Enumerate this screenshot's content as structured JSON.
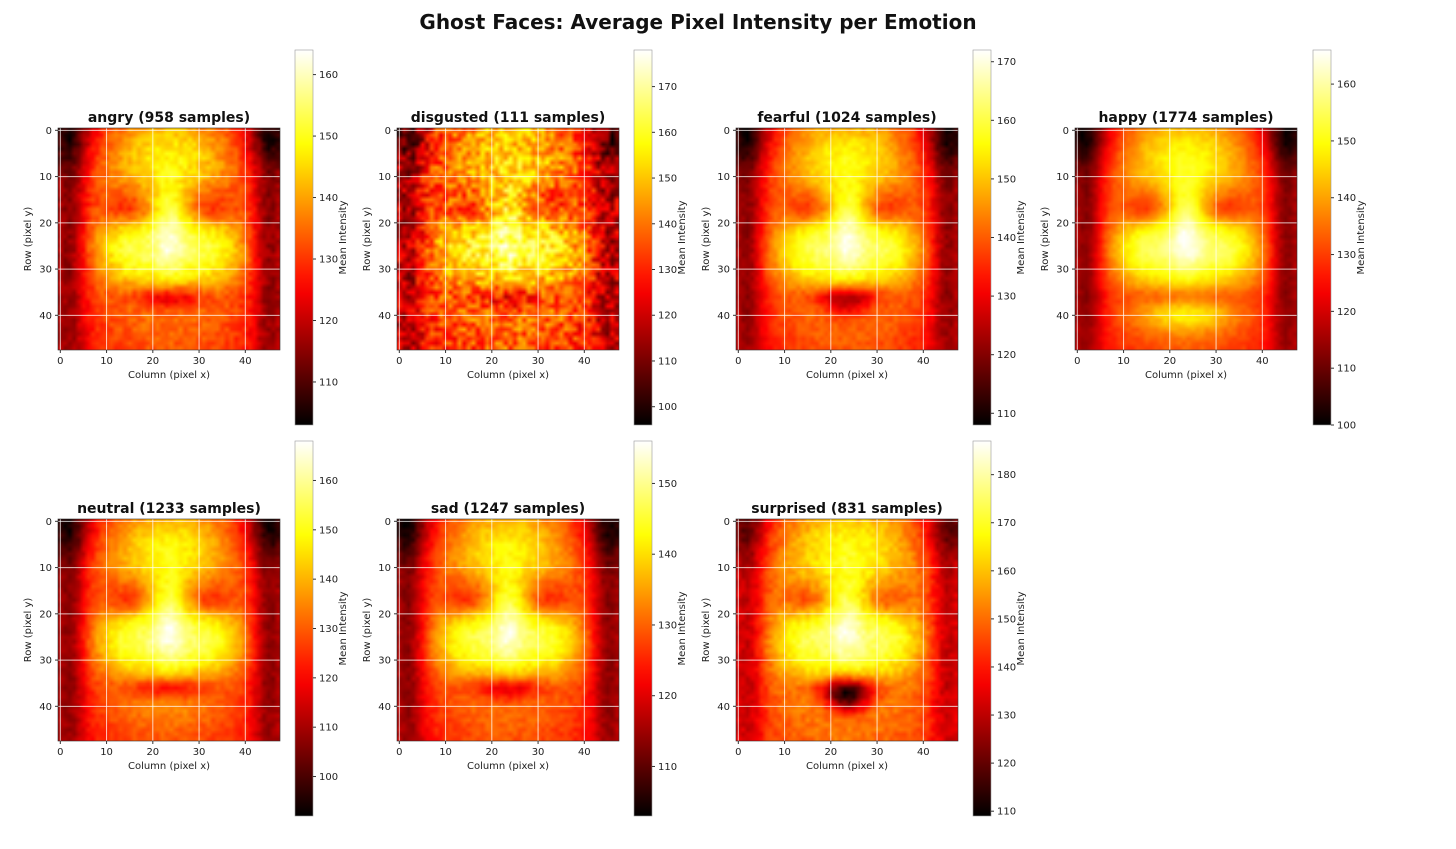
{
  "figure_title": "Ghost Faces: Average Pixel Intensity per Emotion",
  "chart_data": [
    {
      "type": "heatmap",
      "title": "angry (958 samples)",
      "xlabel": "Column (pixel x)",
      "ylabel": "Row (pixel y)",
      "x_ticks": [
        0,
        10,
        20,
        30,
        40
      ],
      "y_ticks": [
        0,
        10,
        20,
        30,
        40
      ],
      "grid": true,
      "colorbar": {
        "label": "Mean Intensity",
        "range": [
          103,
          164
        ],
        "ticks": [
          110,
          120,
          130,
          140,
          150,
          160
        ]
      },
      "colormap": "hot",
      "face_params": {
        "mouth_open": 0.1,
        "smile": 0.0,
        "brow": 0.5,
        "noise": 0.04
      }
    },
    {
      "type": "heatmap",
      "title": "disgusted (111 samples)",
      "xlabel": "Column (pixel x)",
      "ylabel": "Row (pixel y)",
      "x_ticks": [
        0,
        10,
        20,
        30,
        40
      ],
      "y_ticks": [
        0,
        10,
        20,
        30,
        40
      ],
      "grid": true,
      "colorbar": {
        "label": "Mean Intensity",
        "range": [
          96,
          178
        ],
        "ticks": [
          100,
          110,
          120,
          130,
          140,
          150,
          160,
          170
        ]
      },
      "colormap": "hot",
      "face_params": {
        "mouth_open": 0.15,
        "smile": 0.1,
        "brow": 0.7,
        "noise": 0.14
      }
    },
    {
      "type": "heatmap",
      "title": "fearful (1024 samples)",
      "xlabel": "Column (pixel x)",
      "ylabel": "Row (pixel y)",
      "x_ticks": [
        0,
        10,
        20,
        30,
        40
      ],
      "y_ticks": [
        0,
        10,
        20,
        30,
        40
      ],
      "grid": true,
      "colorbar": {
        "label": "Mean Intensity",
        "range": [
          108,
          172
        ],
        "ticks": [
          110,
          120,
          130,
          140,
          150,
          160,
          170
        ]
      },
      "colormap": "hot",
      "face_params": {
        "mouth_open": 0.35,
        "smile": 0.0,
        "brow": 0.4,
        "noise": 0.03
      }
    },
    {
      "type": "heatmap",
      "title": "happy (1774 samples)",
      "xlabel": "Column (pixel x)",
      "ylabel": "Row (pixel y)",
      "x_ticks": [
        0,
        10,
        20,
        30,
        40
      ],
      "y_ticks": [
        0,
        10,
        20,
        30,
        40
      ],
      "grid": true,
      "colorbar": {
        "label": "Mean Intensity",
        "range": [
          100,
          166
        ],
        "ticks": [
          100,
          110,
          120,
          130,
          140,
          150,
          160
        ]
      },
      "colormap": "hot",
      "face_params": {
        "mouth_open": 0.0,
        "smile": 1.0,
        "brow": 0.3,
        "noise": 0.02
      }
    },
    {
      "type": "heatmap",
      "title": "neutral (1233 samples)",
      "xlabel": "Column (pixel x)",
      "ylabel": "Row (pixel y)",
      "x_ticks": [
        0,
        10,
        20,
        30,
        40
      ],
      "y_ticks": [
        0,
        10,
        20,
        30,
        40
      ],
      "grid": true,
      "colorbar": {
        "label": "Mean Intensity",
        "range": [
          92,
          168
        ],
        "ticks": [
          100,
          110,
          120,
          130,
          140,
          150,
          160
        ]
      },
      "colormap": "hot",
      "face_params": {
        "mouth_open": 0.05,
        "smile": 0.2,
        "brow": 0.4,
        "noise": 0.03
      }
    },
    {
      "type": "heatmap",
      "title": "sad (1247 samples)",
      "xlabel": "Column (pixel x)",
      "ylabel": "Row (pixel y)",
      "x_ticks": [
        0,
        10,
        20,
        30,
        40
      ],
      "y_ticks": [
        0,
        10,
        20,
        30,
        40
      ],
      "grid": true,
      "colorbar": {
        "label": "Mean Intensity",
        "range": [
          103,
          156
        ],
        "ticks": [
          110,
          120,
          130,
          140,
          150
        ]
      },
      "colormap": "hot",
      "face_params": {
        "mouth_open": 0.1,
        "smile": 0.0,
        "brow": 0.5,
        "noise": 0.03
      }
    },
    {
      "type": "heatmap",
      "title": "surprised (831 samples)",
      "xlabel": "Column (pixel x)",
      "ylabel": "Row (pixel y)",
      "x_ticks": [
        0,
        10,
        20,
        30,
        40
      ],
      "y_ticks": [
        0,
        10,
        20,
        30,
        40
      ],
      "grid": true,
      "colorbar": {
        "label": "Mean Intensity",
        "range": [
          109,
          187
        ],
        "ticks": [
          110,
          120,
          130,
          140,
          150,
          160,
          170,
          180
        ]
      },
      "colormap": "hot",
      "face_params": {
        "mouth_open": 1.0,
        "smile": 0.0,
        "brow": 0.2,
        "noise": 0.04
      }
    }
  ]
}
